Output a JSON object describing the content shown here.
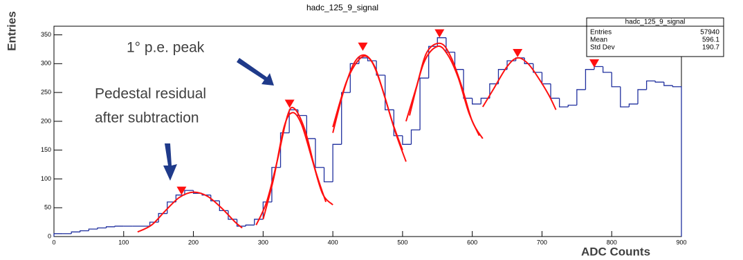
{
  "chart_data": {
    "type": "histogram",
    "title": "hadc_125_9_signal",
    "xlabel": "ADC Counts",
    "ylabel": "Entries",
    "bins": [
      0,
      12.5,
      25,
      37.5,
      50,
      62.5,
      75,
      87.5,
      100,
      112.5,
      125,
      137.5,
      150,
      162.5,
      175,
      187.5,
      200,
      212.5,
      225,
      237.5,
      250,
      262.5,
      275,
      287.5,
      300,
      312.5,
      325,
      337.5,
      350,
      362.5,
      375,
      387.5,
      400,
      412.5,
      425,
      437.5,
      450,
      462.5,
      475,
      487.5,
      500,
      512.5,
      525,
      537.5,
      550,
      562.5,
      575,
      587.5,
      600,
      612.5,
      625,
      637.5,
      650,
      662.5,
      675,
      687.5,
      700,
      712.5,
      725,
      737.5,
      750,
      762.5,
      775,
      787.5,
      800,
      812.5,
      825,
      837.5,
      850,
      862.5,
      875,
      887.5,
      900
    ],
    "values": [
      5,
      5,
      8,
      10,
      13,
      15,
      17,
      18,
      18,
      18,
      18,
      25,
      40,
      60,
      72,
      80,
      75,
      72,
      62,
      45,
      30,
      18,
      20,
      30,
      60,
      120,
      180,
      220,
      210,
      170,
      120,
      95,
      160,
      250,
      300,
      310,
      305,
      280,
      220,
      175,
      160,
      185,
      275,
      330,
      345,
      320,
      290,
      240,
      230,
      240,
      265,
      290,
      305,
      310,
      300,
      285,
      265,
      240,
      225,
      228,
      255,
      290,
      295,
      285,
      260,
      225,
      230,
      255,
      270,
      268,
      262,
      260
    ],
    "color": "#1f2f9e",
    "xlim": [
      0,
      900
    ],
    "ylim": [
      0,
      365
    ],
    "xticks": [
      0,
      100,
      200,
      300,
      400,
      500,
      600,
      700,
      800,
      900
    ],
    "yticks": [
      0,
      50,
      100,
      150,
      200,
      250,
      300,
      350
    ],
    "fit_color": "#ff1010",
    "fits": [
      {
        "x": [
          120,
          140,
          160,
          180,
          200,
          220,
          240,
          260,
          270
        ],
        "y": [
          8,
          20,
          45,
          68,
          77,
          70,
          50,
          25,
          15
        ]
      },
      {
        "x": [
          290,
          305,
          320,
          335,
          345,
          360,
          375,
          390
        ],
        "y": [
          20,
          60,
          130,
          210,
          222,
          185,
          115,
          60
        ]
      },
      {
        "x": [
          300,
          315,
          330,
          342,
          355,
          370,
          385,
          400
        ],
        "y": [
          30,
          100,
          190,
          215,
          195,
          135,
          75,
          55
        ]
      },
      {
        "x": [
          400,
          415,
          430,
          445,
          460,
          475,
          490,
          505
        ],
        "y": [
          180,
          250,
          300,
          315,
          295,
          240,
          180,
          130
        ]
      },
      {
        "x": [
          400,
          420,
          440,
          455,
          470,
          485,
          500
        ],
        "y": [
          190,
          270,
          310,
          305,
          260,
          200,
          150
        ]
      },
      {
        "x": [
          505,
          520,
          535,
          555,
          570,
          585,
          600,
          615
        ],
        "y": [
          200,
          260,
          320,
          335,
          310,
          260,
          200,
          170
        ]
      },
      {
        "x": [
          510,
          530,
          550,
          565,
          580,
          595,
          610
        ],
        "y": [
          210,
          300,
          330,
          315,
          275,
          215,
          175
        ]
      },
      {
        "x": [
          615,
          630,
          650,
          665,
          680,
          695,
          710,
          720
        ],
        "y": [
          225,
          255,
          295,
          310,
          300,
          275,
          245,
          220
        ]
      }
    ],
    "markers": {
      "color": "#ff1010",
      "x": [
        183,
        338,
        443,
        553,
        665,
        775
      ],
      "y": [
        77,
        228,
        327,
        350,
        316,
        298
      ]
    },
    "stats": {
      "title": "hadc_125_9_signal",
      "rows": [
        {
          "label": "Entries",
          "value": 57940
        },
        {
          "label": "Mean",
          "value": 596.1
        },
        {
          "label": "Std Dev",
          "value": 190.7
        }
      ]
    },
    "annotations": [
      {
        "lines": [
          "1° p.e. peak"
        ]
      },
      {
        "lines": [
          "Pedestal residual",
          "after subtraction"
        ]
      }
    ]
  }
}
